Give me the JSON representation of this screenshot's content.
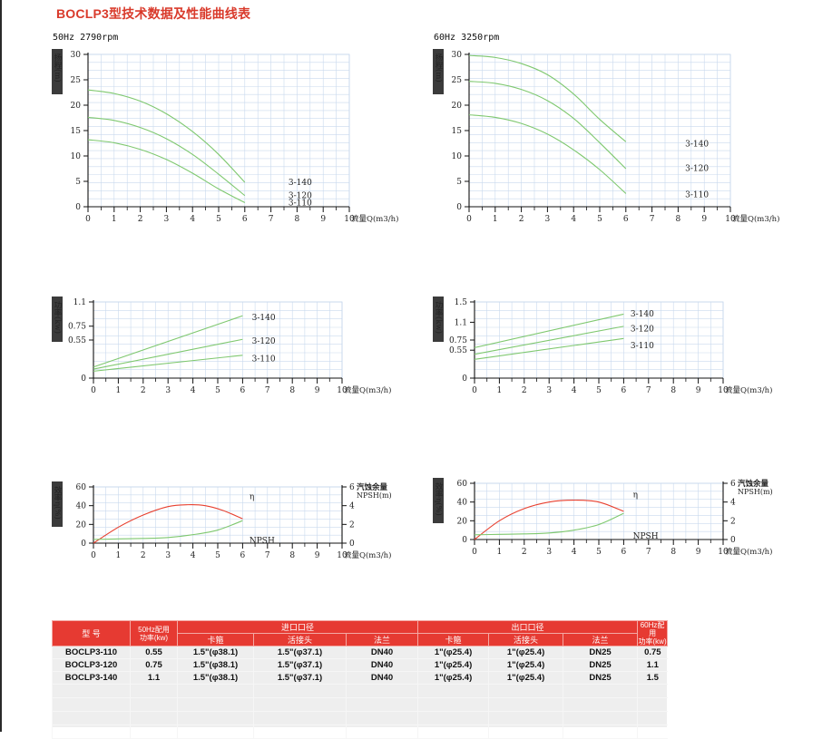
{
  "page": {
    "title": "BOCLP3型技术数据及性能曲线表"
  },
  "conditions": {
    "hz50": "50Hz  2790rpm",
    "hz60": "60Hz  3250rpm"
  },
  "colors": {
    "green": "#7fc86f",
    "red": "#e8402f",
    "header": "#e63a32"
  },
  "chart_data": [
    {
      "id": "head-50hz",
      "type": "line",
      "title": "",
      "ylabel": "扬程(m)",
      "xlabel": "流量Q(m3/h)",
      "xlim": [
        0,
        10
      ],
      "ylim": [
        0,
        30
      ],
      "xticks": [
        "0",
        "1",
        "2",
        "3",
        "4",
        "5",
        "6",
        "7",
        "8",
        "9",
        "10"
      ],
      "yticks": [
        "0",
        "5",
        "10",
        "15",
        "20",
        "25",
        "30"
      ],
      "series": [
        {
          "name": "3-140",
          "color": "#7fc86f",
          "x": [
            0,
            1,
            2,
            3,
            4,
            5,
            6
          ],
          "y": [
            23,
            22.3,
            20.8,
            18.3,
            14.8,
            10.3,
            4.8
          ]
        },
        {
          "name": "3-120",
          "color": "#7fc86f",
          "x": [
            0,
            1,
            2,
            3,
            4,
            5,
            6
          ],
          "y": [
            17.6,
            17,
            15.6,
            13.4,
            10.3,
            6.4,
            2.2
          ]
        },
        {
          "name": "3-110",
          "color": "#7fc86f",
          "x": [
            0,
            1,
            2,
            3,
            4,
            5,
            6
          ],
          "y": [
            13.2,
            12.6,
            11.3,
            9.3,
            6.6,
            3.5,
            0.8
          ]
        }
      ]
    },
    {
      "id": "head-60hz",
      "type": "line",
      "title": "",
      "ylabel": "扬程(m)",
      "xlabel": "流量Q(m3/h)",
      "xlim": [
        0,
        10
      ],
      "ylim": [
        0,
        30
      ],
      "xticks": [
        "0",
        "1",
        "2",
        "3",
        "4",
        "5",
        "6",
        "7",
        "8",
        "9",
        "10"
      ],
      "yticks": [
        "0",
        "5",
        "10",
        "15",
        "20",
        "25",
        "30"
      ],
      "series": [
        {
          "name": "3-140",
          "color": "#7fc86f",
          "x": [
            0,
            1,
            2,
            3,
            4,
            5,
            6
          ],
          "y": [
            29.8,
            29.4,
            28.2,
            26,
            22.2,
            17.2,
            12.8
          ]
        },
        {
          "name": "3-120",
          "color": "#7fc86f",
          "x": [
            0,
            1,
            2,
            3,
            4,
            5,
            6
          ],
          "y": [
            24.7,
            24.3,
            23.1,
            20.9,
            17.4,
            12.6,
            7.5
          ]
        },
        {
          "name": "3-110",
          "color": "#7fc86f",
          "x": [
            0,
            1,
            2,
            3,
            4,
            5,
            6
          ],
          "y": [
            18.1,
            17.6,
            16.4,
            14.3,
            11.2,
            7.3,
            2.6
          ]
        }
      ]
    },
    {
      "id": "power-50hz",
      "type": "line",
      "title": "",
      "ylabel": "功率(kw)",
      "xlabel": "流量Q(m3/h)",
      "xlim": [
        0,
        10
      ],
      "ylim": [
        0,
        1.1
      ],
      "xticks": [
        "0",
        "1",
        "2",
        "3",
        "4",
        "5",
        "6",
        "7",
        "8",
        "9",
        "10"
      ],
      "yticks": [
        "0",
        "0.55",
        "0.75",
        "1.1"
      ],
      "series": [
        {
          "name": "3-140",
          "color": "#7fc86f",
          "x": [
            0,
            6
          ],
          "y": [
            0.16,
            0.9
          ]
        },
        {
          "name": "3-120",
          "color": "#7fc86f",
          "x": [
            0,
            6
          ],
          "y": [
            0.13,
            0.56
          ]
        },
        {
          "name": "3-110",
          "color": "#7fc86f",
          "x": [
            0,
            6
          ],
          "y": [
            0.1,
            0.33
          ]
        }
      ]
    },
    {
      "id": "power-60hz",
      "type": "line",
      "title": "",
      "ylabel": "功率(kw)",
      "xlabel": "流量Q(m3/h)",
      "xlim": [
        0,
        10
      ],
      "ylim": [
        0,
        1.5
      ],
      "xticks": [
        "0",
        "1",
        "2",
        "3",
        "4",
        "5",
        "6",
        "7",
        "8",
        "9",
        "10"
      ],
      "yticks": [
        "0",
        "0.55",
        "0.75",
        "1.1",
        "1.5"
      ],
      "series": [
        {
          "name": "3-140",
          "color": "#7fc86f",
          "x": [
            0,
            6
          ],
          "y": [
            0.6,
            1.26
          ]
        },
        {
          "name": "3-120",
          "color": "#7fc86f",
          "x": [
            0,
            6
          ],
          "y": [
            0.47,
            1.02
          ]
        },
        {
          "name": "3-110",
          "color": "#7fc86f",
          "x": [
            0,
            6
          ],
          "y": [
            0.37,
            0.78
          ]
        }
      ]
    },
    {
      "id": "eff-50hz",
      "type": "line",
      "title": "",
      "ylabel": "效率η(%)",
      "y2label": "汽蚀余量 NPSH(m)",
      "xlabel": "流量Q(m3/h)",
      "xlim": [
        0,
        10
      ],
      "ylim": [
        0,
        60
      ],
      "y2lim": [
        0,
        6
      ],
      "xticks": [
        "0",
        "1",
        "2",
        "3",
        "4",
        "5",
        "6",
        "7",
        "8",
        "9",
        "10"
      ],
      "yticks": [
        "0",
        "20",
        "40",
        "60"
      ],
      "y2ticks": [
        "0",
        "2",
        "4",
        "6"
      ],
      "series": [
        {
          "name": "η",
          "color": "#e8402f",
          "axis": "left",
          "x": [
            0,
            1,
            2,
            3,
            3.8,
            4.5,
            5.2,
            6
          ],
          "y": [
            0,
            17,
            30,
            39,
            41,
            40,
            35,
            26
          ]
        },
        {
          "name": "NPSH",
          "color": "#7fc86f",
          "axis": "right",
          "x": [
            0,
            1,
            2,
            3,
            4,
            5,
            6
          ],
          "y": [
            0.4,
            0.45,
            0.5,
            0.6,
            0.9,
            1.4,
            2.4
          ]
        }
      ]
    },
    {
      "id": "eff-60hz",
      "type": "line",
      "title": "",
      "ylabel": "效率η(%)",
      "y2label": "汽蚀余量 NPSH(m)",
      "xlabel": "流量Q(m3/h)",
      "xlim": [
        0,
        10
      ],
      "ylim": [
        0,
        60
      ],
      "y2lim": [
        0,
        6
      ],
      "xticks": [
        "0",
        "1",
        "2",
        "3",
        "4",
        "5",
        "6",
        "7",
        "8",
        "9",
        "10"
      ],
      "yticks": [
        "0",
        "20",
        "40",
        "60"
      ],
      "y2ticks": [
        "0",
        "2",
        "4",
        "6"
      ],
      "series": [
        {
          "name": "η",
          "color": "#e8402f",
          "axis": "left",
          "x": [
            0,
            1,
            2,
            3,
            4,
            5,
            6
          ],
          "y": [
            0,
            20,
            33,
            40,
            42,
            40,
            30
          ]
        },
        {
          "name": "NPSH",
          "color": "#7fc86f",
          "axis": "right",
          "x": [
            0,
            1,
            2,
            3,
            4,
            5,
            6
          ],
          "y": [
            0.5,
            0.55,
            0.6,
            0.7,
            1.0,
            1.6,
            2.8
          ]
        }
      ]
    }
  ],
  "table": {
    "h_model": "型    号",
    "h_power50": "50Hz配用\n功率(kw)",
    "h_inlet": "进口口径",
    "h_outlet": "出口口径",
    "h_power60": "60Hz配用\n功率(kw)",
    "h_clamp": "卡箍",
    "h_union": "活接头",
    "h_flange": "法兰",
    "rows": [
      {
        "model": "BOCLP3-110",
        "p50": "0.55",
        "in_clamp": "1.5\"(φ38.1)",
        "in_union": "1.5\"(φ37.1)",
        "in_flange": "DN40",
        "out_clamp": "1\"(φ25.4)",
        "out_union": "1\"(φ25.4)",
        "out_flange": "DN25",
        "p60": "0.75"
      },
      {
        "model": "BOCLP3-120",
        "p50": "0.75",
        "in_clamp": "1.5\"(φ38.1)",
        "in_union": "1.5\"(φ37.1)",
        "in_flange": "DN40",
        "out_clamp": "1\"(φ25.4)",
        "out_union": "1\"(φ25.4)",
        "out_flange": "DN25",
        "p60": "1.1"
      },
      {
        "model": "BOCLP3-140",
        "p50": "1.1",
        "in_clamp": "1.5\"(φ38.1)",
        "in_union": "1.5\"(φ37.1)",
        "in_flange": "DN40",
        "out_clamp": "1\"(φ25.4)",
        "out_union": "1\"(φ25.4)",
        "out_flange": "DN25",
        "p60": "1.5"
      }
    ]
  }
}
